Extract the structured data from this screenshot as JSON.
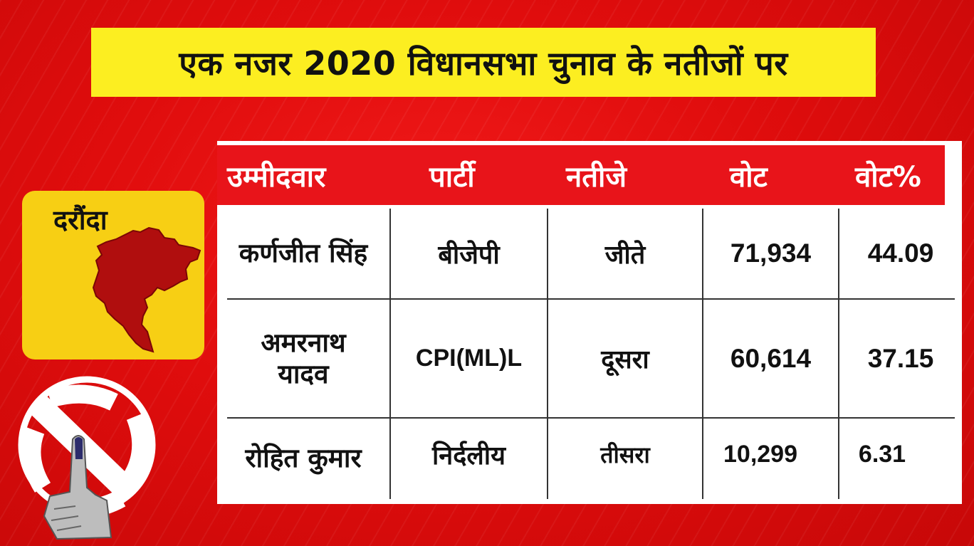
{
  "title": "एक नजर 2020 विधानसभा चुनाव के नतीजों पर",
  "constituency": "दरौंदा",
  "table": {
    "headers": [
      "उम्मीदवार",
      "पार्टी",
      "नतीजे",
      "वोट",
      "वोट%"
    ],
    "rows": [
      {
        "candidate": "कर्णजीत सिंह",
        "party": "बीजेपी",
        "result": "जीते",
        "votes": "71,934",
        "vote_pct": "44.09"
      },
      {
        "candidate": "अमरनाथ यादव",
        "party": "CPI(ML)L",
        "result": "दूसरा",
        "votes": "60,614",
        "vote_pct": "37.15"
      },
      {
        "candidate": "रोहित कुमार",
        "party": "निर्दलीय",
        "result": "तीसरा",
        "votes": "10,299",
        "vote_pct": "6.31"
      }
    ]
  },
  "colors": {
    "background": "#e00d0d",
    "banner": "#fcee21",
    "header": "#e8141a",
    "map_card": "#f7cf14",
    "map_fill": "#b00e0e"
  },
  "icons": [
    "constituency-map-icon",
    "election-commission-logo-icon",
    "inked-finger-icon"
  ]
}
